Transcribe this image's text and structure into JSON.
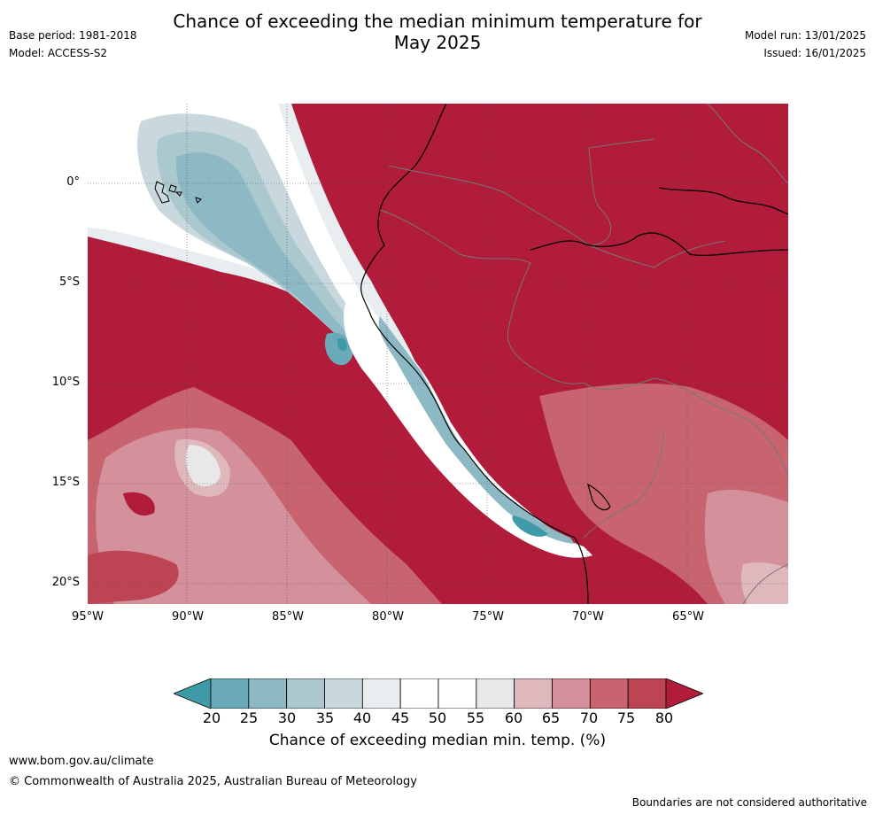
{
  "title_line1": "Chance of exceeding the median minimum temperature for",
  "title_line2": "May 2025",
  "base_period": "Base period: 1981-2018",
  "model": "Model: ACCESS-S2",
  "model_run": "Model run: 13/01/2025",
  "issued": "Issued: 16/01/2025",
  "lat_ticks": [
    "0°",
    "5°S",
    "10°S",
    "15°S",
    "20°S"
  ],
  "lon_ticks": [
    "95°W",
    "90°W",
    "85°W",
    "80°W",
    "75°W",
    "70°W",
    "65°W"
  ],
  "colorbar": {
    "ticks": [
      "20",
      "25",
      "30",
      "35",
      "40",
      "45",
      "50",
      "55",
      "60",
      "65",
      "70",
      "75",
      "80"
    ],
    "colors": [
      "#3f9aa8",
      "#6aa9b7",
      "#8db9c4",
      "#abc8ce",
      "#c8d8dc",
      "#e8eef0",
      "#ffffff",
      "#ffffff",
      "#e8e8e8",
      "#dfb8bd",
      "#d4909b",
      "#c8646f",
      "#bc4453",
      "#b01c3a"
    ],
    "label": "Chance of exceeding median min. temp. (%)"
  },
  "footer": {
    "url": "www.bom.gov.au/climate",
    "copyright": "© Commonwealth of Australia 2025, Australian Bureau of Meteorology",
    "note": "Boundaries are not considered authoritative"
  }
}
